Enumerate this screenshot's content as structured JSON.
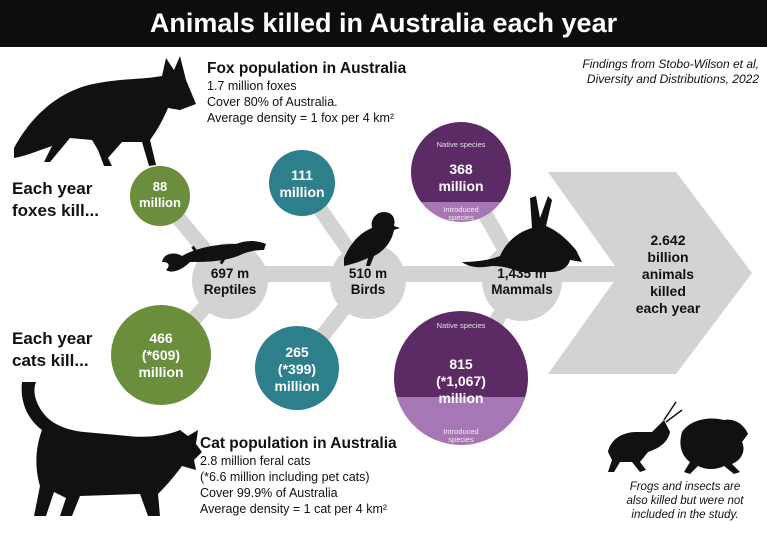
{
  "title": "Animals killed in Australia each year",
  "citation": {
    "line1": "Findings from Stobo-Wilson et al,",
    "line2": "Diversity and Distributions, 2022"
  },
  "fox": {
    "heading": "Fox population in Australia",
    "line1": "1.7 million foxes",
    "line2": "Cover 80% of Australia.",
    "line3": "Average density = 1 fox per 4 km²"
  },
  "cat": {
    "heading": "Cat population in Australia",
    "line1": "2.8 million feral cats",
    "line2": "(*6.6 million including pet cats)",
    "line3": "Cover 99.9% of Australia",
    "line4": "Average density = 1 cat per 4 km²"
  },
  "foxes_kill": {
    "line1": "Each year",
    "line2": "foxes kill..."
  },
  "cats_kill": {
    "line1": "Each year",
    "line2": "cats kill..."
  },
  "reptiles": {
    "hub": {
      "value": "697 m",
      "label": "Reptiles"
    },
    "fox": {
      "line1": "88",
      "line2": "million"
    },
    "cat": {
      "line1": "466",
      "line2": "(*609)",
      "line3": "million"
    }
  },
  "birds": {
    "hub": {
      "value": "510 m",
      "label": "Birds"
    },
    "fox": {
      "line1": "111",
      "line2": "million"
    },
    "cat": {
      "line1": "265",
      "line2": "(*399)",
      "line3": "million"
    }
  },
  "mammals": {
    "hub": {
      "value": "1,435 m",
      "label": "Mammals"
    },
    "fox": {
      "native": "Native species",
      "line1": "368",
      "line2": "million",
      "introduced": "Introduced species"
    },
    "cat": {
      "native": "Native species",
      "line1": "815",
      "line2": "(*1,067)",
      "line3": "million",
      "introduced": "Introduced species"
    }
  },
  "total": {
    "line1": "2.642",
    "line2": "billion",
    "line3": "animals",
    "line4": "killed",
    "line5": "each year"
  },
  "footnote": {
    "line1": "Frogs and insects are",
    "line2": "also killed but were not",
    "line3": "included in the study."
  },
  "colors": {
    "header_bg": "#0d0d0d",
    "reptile_green": "#6a8e3c",
    "bird_teal": "#2e7f8c",
    "mammal_dark": "#5c2b66",
    "mammal_light": "#a777b5",
    "connector_grey": "#d3d3d3",
    "silhouette": "#111111"
  },
  "icons": [
    "fox-silhouette",
    "cat-silhouette",
    "lizard-silhouette",
    "bird-silhouette",
    "bilby-silhouette",
    "grasshopper-silhouette",
    "frog-silhouette",
    "arrow-chevron"
  ]
}
